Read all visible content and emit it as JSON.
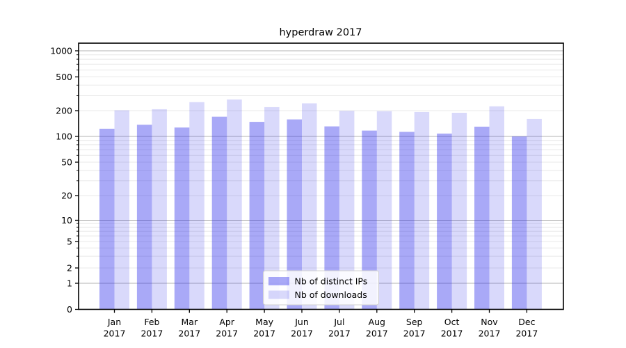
{
  "figure": {
    "background": "#ffffff"
  },
  "chart_data": {
    "type": "bar",
    "title": "hyperdraw 2017",
    "categories": [
      "Jan",
      "Feb",
      "Mar",
      "Apr",
      "May",
      "Jun",
      "Jul",
      "Aug",
      "Sep",
      "Oct",
      "Nov",
      "Dec"
    ],
    "category_year": "2017",
    "series": [
      {
        "name": "Nb of distinct IPs",
        "fill": "rgba(45,45,235,0.41)",
        "hex_over_white": "#a9a9f4",
        "values": [
          123,
          137,
          127,
          170,
          148,
          158,
          131,
          117,
          113,
          108,
          130,
          100
        ]
      },
      {
        "name": "Nb of downloads",
        "fill": "rgba(45,45,235,0.18)",
        "hex_over_white": "#d9d9fb",
        "values": [
          202,
          208,
          252,
          271,
          220,
          244,
          199,
          197,
          193,
          189,
          225,
          160
        ]
      }
    ],
    "yscale": "symlog",
    "ylim": [
      0,
      1230
    ],
    "y_tick_labels": [
      "0",
      "1",
      "2",
      "5",
      "10",
      "20",
      "50",
      "100",
      "200",
      "500",
      "1000"
    ],
    "y_tick_values": [
      0,
      1,
      2,
      5,
      10,
      20,
      50,
      100,
      200,
      500,
      1000
    ],
    "grid": true,
    "legend": {
      "labels": [
        "Nb of distinct IPs",
        "Nb of downloads"
      ],
      "position": "lower center"
    },
    "colors": {
      "major_grid": "#b3b3b3",
      "minor_grid": "#e8e8e8",
      "axis": "#000000"
    }
  }
}
